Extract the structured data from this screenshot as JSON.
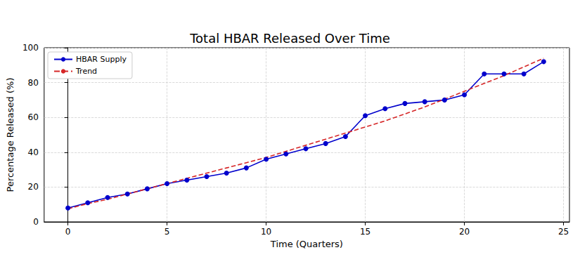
{
  "chart_data": {
    "type": "line",
    "title": "Total HBAR Released Over Time",
    "x_label": "Time (Quarters)",
    "y_label": "Percentage Released (%)",
    "x": [
      0,
      1,
      2,
      3,
      4,
      5,
      6,
      7,
      8,
      9,
      10,
      11,
      12,
      13,
      14,
      15,
      16,
      17,
      18,
      19,
      20,
      21,
      22,
      23,
      24
    ],
    "series": [
      {
        "name": "HBAR Supply",
        "color": "#0000cc",
        "marker": "o",
        "line_style": "solid",
        "values": [
          8,
          11,
          14,
          16,
          19,
          22,
          24,
          26,
          28,
          31,
          36,
          39,
          42,
          45,
          49,
          61,
          65,
          68,
          69,
          70,
          73,
          85,
          85,
          85,
          92
        ]
      },
      {
        "name": "Trend",
        "color": "#d62728",
        "marker": "none",
        "line_style": "dashed",
        "values": [
          7.5,
          10.5,
          13,
          16,
          19,
          22,
          25,
          28,
          31,
          34,
          37,
          40.5,
          44,
          47.5,
          51,
          54.5,
          58,
          62,
          66,
          70.5,
          75,
          79.5,
          84,
          89,
          94
        ]
      }
    ],
    "xlim": [
      -1.2,
      25.3
    ],
    "xticks": [
      0,
      5,
      10,
      15,
      20,
      25
    ],
    "ylim": [
      0,
      100
    ],
    "yticks": [
      0,
      20,
      40,
      60,
      80,
      100
    ],
    "grid": true,
    "legend": "upper left"
  }
}
